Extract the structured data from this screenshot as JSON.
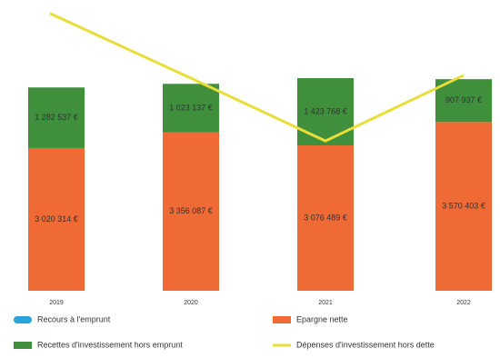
{
  "chart_data": {
    "type": "bar",
    "categories": [
      "2019",
      "2020",
      "2021",
      "2022"
    ],
    "ylim": [
      0,
      6000000
    ],
    "series": [
      {
        "name": "Recours à l'emprunt",
        "color": "#29a3d9",
        "values": [
          0,
          0,
          0,
          0
        ]
      },
      {
        "name": "Epargne nette",
        "color": "#f06a35",
        "values": [
          3020314,
          3356087,
          3076489,
          3570403
        ],
        "value_labels": [
          "3 020 314 €",
          "3 356 087 €",
          "3 076 489 €",
          "3 570 403 €"
        ]
      },
      {
        "name": "Recettes d'investissement hors emprunt",
        "color": "#3f8f3c",
        "values": [
          1282537,
          1023137,
          1423768,
          907937
        ],
        "value_labels": [
          "1 282 537 €",
          "1 023 137 €",
          "1 423 768 €",
          "907 937 €"
        ]
      },
      {
        "name": "Dépenses d'investissement hors dette",
        "color": "#e8de3a",
        "type": "line",
        "values": [
          5870000,
          4500000,
          3170000,
          4560000
        ]
      }
    ]
  }
}
